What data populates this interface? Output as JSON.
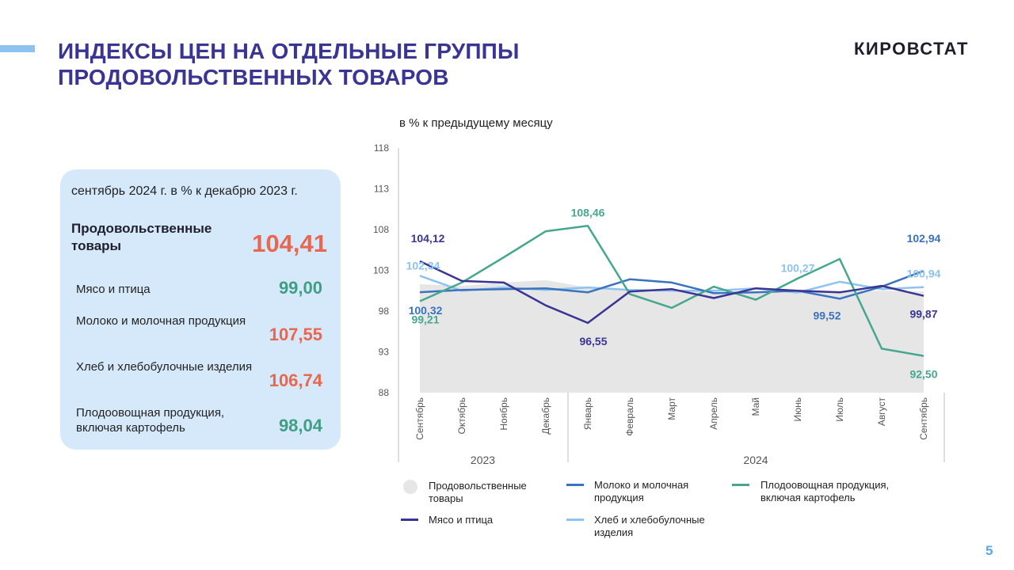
{
  "header": {
    "title_line1": "ИНДЕКСЫ ЦЕН НА ОТДЕЛЬНЫЕ ГРУППЫ",
    "title_line2": "ПРОДОВОЛЬСТВЕННЫХ ТОВАРОВ",
    "brand": "КИРОВСТАТ"
  },
  "page_number": "5",
  "panel": {
    "header": "сентябрь 2024 г. в % к декабрю 2023 г.",
    "total": {
      "label": "Продовольственные товары",
      "value": "104,41",
      "color": "#e8674e"
    },
    "rows": [
      {
        "label": "Мясо и птица",
        "value": "99,00",
        "color": "#3f9e84"
      },
      {
        "label": "Молоко и молочная продукция",
        "value": "107,55",
        "color": "#e8674e"
      },
      {
        "label": "Хлеб и хлебобулочные изделия",
        "value": "106,74",
        "color": "#e8674e"
      },
      {
        "label": "Плодоовощная продукция, включая картофель",
        "value": "98,04",
        "color": "#3f9e84"
      }
    ]
  },
  "chart_data": {
    "type": "line",
    "subtitle": "в % к предыдущему месяцу",
    "ylim": [
      88,
      118
    ],
    "yticks": [
      88,
      93,
      98,
      103,
      108,
      113,
      118
    ],
    "categories": [
      "Сентябрь",
      "Октябрь",
      "Ноябрь",
      "Декабрь",
      "Январь",
      "Февраль",
      "Март",
      "Апрель",
      "Май",
      "Июнь",
      "Июль",
      "Август",
      "Сентябрь"
    ],
    "year_groups": [
      {
        "label": "2023",
        "from": 0,
        "to": 3
      },
      {
        "label": "2024",
        "from": 4,
        "to": 12
      }
    ],
    "grid": false,
    "legend_position": "bottom",
    "series": [
      {
        "name": "Продовольственные товары",
        "kind": "area",
        "color": "#e6e6e6",
        "values": [
          101.3,
          101.1,
          101.5,
          101.8,
          100.9,
          100.5,
          100.7,
          100.3,
          100.4,
          100.2,
          100.5,
          100.5,
          100.4
        ]
      },
      {
        "name": "Молоко и молочная продукция",
        "kind": "line",
        "color": "#3a72be",
        "values": [
          100.32,
          100.6,
          100.7,
          100.8,
          100.3,
          101.9,
          101.5,
          100.2,
          100.3,
          100.5,
          99.52,
          101.0,
          102.94
        ]
      },
      {
        "name": "Плодоовощная продукция, включая картофель",
        "kind": "line",
        "color": "#45a88e",
        "values": [
          99.21,
          101.5,
          104.6,
          107.8,
          108.46,
          100.1,
          98.4,
          101.0,
          99.4,
          102.0,
          104.4,
          93.4,
          92.5
        ]
      },
      {
        "name": "Мясо и птица",
        "kind": "line",
        "color": "#3a3593",
        "values": [
          104.12,
          101.7,
          101.5,
          98.7,
          96.55,
          100.4,
          100.7,
          99.6,
          100.8,
          100.5,
          100.3,
          101.1,
          99.87
        ]
      },
      {
        "name": "Хлеб и хлебобулочные изделия",
        "kind": "line",
        "color": "#8cc3f0",
        "values": [
          102.34,
          100.5,
          100.9,
          100.6,
          100.9,
          100.6,
          100.5,
          100.5,
          100.8,
          100.27,
          101.6,
          100.7,
          100.94
        ]
      }
    ],
    "annotations": [
      {
        "text": "104,12",
        "series": "Мясо и птица",
        "index": 0,
        "color": "#3a3593",
        "pos": "above-left"
      },
      {
        "text": "102,34",
        "series": "Хлеб и хлебобулочные изделия",
        "index": 0,
        "color": "#8cc3f0",
        "pos": "above-left-2"
      },
      {
        "text": "100,32",
        "series": "Молоко и молочная продукция",
        "index": 0,
        "color": "#3a72be",
        "pos": "below"
      },
      {
        "text": "99,21",
        "series": "Плодоовощная продукция, включая картофель",
        "index": 0,
        "color": "#45a88e",
        "pos": "below"
      },
      {
        "text": "108,46",
        "series": "Плодоовощная продукция, включая картофель",
        "index": 4,
        "color": "#45a88e",
        "pos": "above"
      },
      {
        "text": "96,55",
        "series": "Мясо и птица",
        "index": 4,
        "color": "#3a3593",
        "pos": "below"
      },
      {
        "text": "100,27",
        "series": "Хлеб и хлебобулочные изделия",
        "index": 9,
        "color": "#8cc3f0",
        "pos": "above-high"
      },
      {
        "text": "99,52",
        "series": "Молоко и молочная продукция",
        "index": 10,
        "color": "#3a72be",
        "pos": "below-left"
      },
      {
        "text": "102,94",
        "series": "Молоко и молочная продукция",
        "index": 12,
        "color": "#3a72be",
        "pos": "above-right"
      },
      {
        "text": "100,94",
        "series": "Хлеб и хлебобулочные изделия",
        "index": 12,
        "color": "#8cc3f0",
        "pos": "above-right-2"
      },
      {
        "text": "99,87",
        "series": "Мясо и птица",
        "index": 12,
        "color": "#3a3593",
        "pos": "below-right"
      },
      {
        "text": "92,50",
        "series": "Плодоовощная продукция, включая картофель",
        "index": 12,
        "color": "#45a88e",
        "pos": "below-right"
      }
    ]
  }
}
